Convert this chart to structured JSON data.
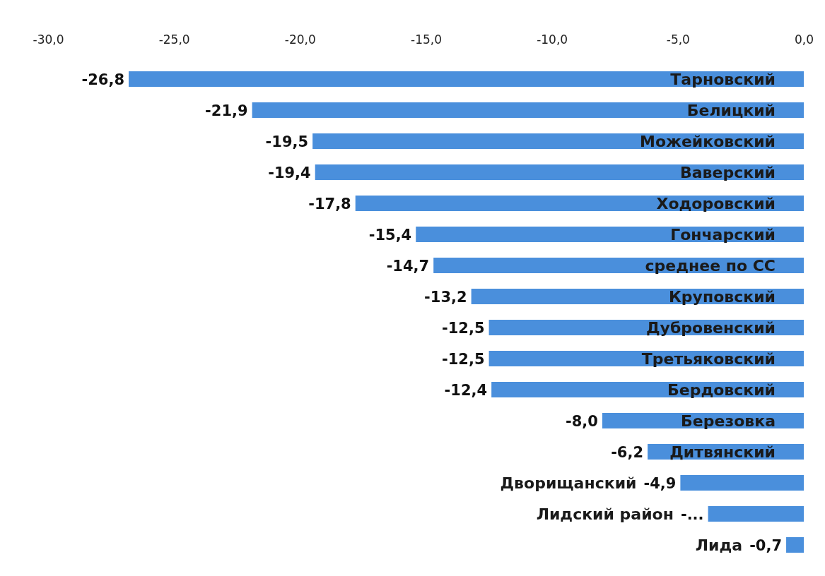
{
  "chart_data": {
    "type": "bar",
    "orientation": "horizontal",
    "categories": [
      "Тарновский",
      "Белицкий",
      "Можейковский",
      "Ваверский",
      "Ходоровский",
      "Гончарский",
      "среднее по СС",
      "Круповский",
      "Дубровенский",
      "Третьяковский",
      "Бердовский",
      "Березовка",
      "Дитвянский",
      "Дворищанский",
      "Лидский район",
      "Лида"
    ],
    "values": [
      -26.8,
      -21.9,
      -19.5,
      -19.4,
      -17.8,
      -15.4,
      -14.7,
      -13.2,
      -12.5,
      -12.5,
      -12.4,
      -8.0,
      -6.2,
      -4.9,
      -3.8,
      -0.7
    ],
    "value_labels": [
      "-26,8",
      "-21,9",
      "-19,5",
      "-19,4",
      "-17,8",
      "-15,4",
      "-14,7",
      "-13,2",
      "-12,5",
      "-12,5",
      "-12,4",
      "-8,0",
      "-6,2",
      "-4,9",
      "-...",
      "-0,7"
    ],
    "color": "#4a8fdc",
    "xlim": [
      -30,
      0
    ],
    "xticks": [
      {
        "value": -30,
        "label": "-30,0"
      },
      {
        "value": -25,
        "label": "-25,0"
      },
      {
        "value": -20,
        "label": "-20,0"
      },
      {
        "value": -15,
        "label": "-15,0"
      },
      {
        "value": -10,
        "label": "-10,0"
      },
      {
        "value": -5,
        "label": "-5,0"
      },
      {
        "value": 0,
        "label": "0,0"
      }
    ],
    "grid": false
  }
}
